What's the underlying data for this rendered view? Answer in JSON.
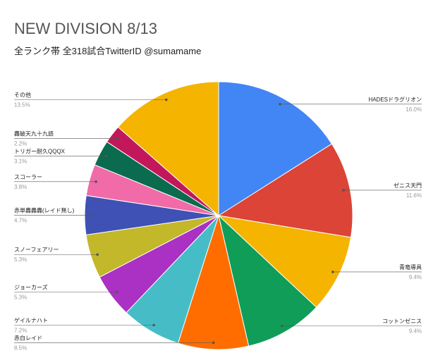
{
  "chart_data": {
    "type": "pie",
    "title": "NEW DIVISION 8/13",
    "subtitle": "全ランク帯 全318試合TwitterID @sumamame",
    "categories": [
      "HADESドラグリオン",
      "ゼニス天門",
      "青竜導具",
      "コットンゼニス",
      "赤白レイド",
      "ゲイルナハト",
      "ジョーカーズ",
      "スノーフェアリー",
      "赤単轟轟轟(レイド無し)",
      "スコーラー",
      "トリガー耐久QQQX",
      "轟破天九十九語",
      "その他"
    ],
    "values": [
      16.0,
      11.6,
      9.4,
      9.4,
      8.5,
      7.2,
      5.3,
      5.3,
      4.7,
      3.8,
      3.1,
      2.2,
      13.5
    ],
    "value_labels": [
      "16.0%",
      "11.6%",
      "9.4%",
      "9.4%",
      "8.5%",
      "7.2%",
      "5.3%",
      "5.3%",
      "4.7%",
      "3.8%",
      "3.1%",
      "2.2%",
      "13.5%"
    ],
    "colors": [
      "#4285f4",
      "#db4437",
      "#f4b400",
      "#0f9d58",
      "#ff6d00",
      "#46bdc6",
      "#ab30c4",
      "#c2b82a",
      "#3f51b5",
      "#f06ba8",
      "#0b6b4f",
      "#c2185b",
      "#f4b400"
    ]
  }
}
